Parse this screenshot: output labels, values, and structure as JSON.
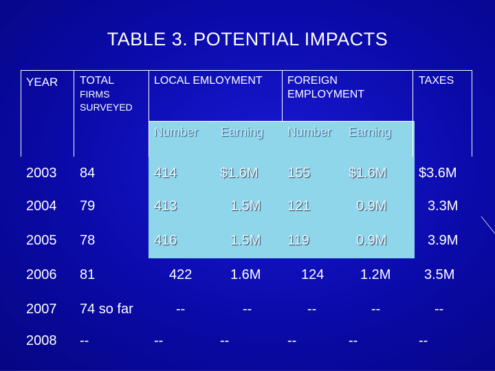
{
  "title": "TABLE 3. POTENTIAL IMPACTS",
  "headers": {
    "year": "YEAR",
    "total_line1": "TOTAL",
    "total_line2": "FIRMS",
    "total_line3": "SURVEYED",
    "local": "LOCAL EMLOYMENT",
    "foreign_line1": "FOREIGN",
    "foreign_line2": "EMPLOYMENT",
    "taxes": "TAXES"
  },
  "subheaders": {
    "local_number": "Number",
    "local_earning": "Earning",
    "foreign_number": "Number",
    "foreign_earning": "Earning"
  },
  "rows": [
    {
      "year": "2003",
      "total": "84",
      "local_number": "414",
      "local_earning": "$1.6M",
      "foreign_number": "155",
      "foreign_earning": "$1.6M",
      "taxes": "$3.6M"
    },
    {
      "year": "2004",
      "total": "79",
      "local_number": "413",
      "local_earning": "1.5M",
      "foreign_number": "121",
      "foreign_earning": "0.9M",
      "taxes": "3.3M"
    },
    {
      "year": "2005",
      "total": "78",
      "local_number": "416",
      "local_earning": "1.5M",
      "foreign_number": "119",
      "foreign_earning": "0.9M",
      "taxes": "3.9M"
    },
    {
      "year": "2006",
      "total": "81",
      "local_number": "422",
      "local_earning": "1.6M",
      "foreign_number": "124",
      "foreign_earning": "1.2M",
      "taxes": "3.5M"
    },
    {
      "year": "2007",
      "total": "74 so far",
      "local_number": "--",
      "local_earning": "--",
      "foreign_number": "--",
      "foreign_earning": "--",
      "taxes": "--"
    },
    {
      "year": "2008",
      "total": "--",
      "local_number": "--",
      "local_earning": "--",
      "foreign_number": "--",
      "foreign_earning": "--",
      "taxes": "--"
    }
  ],
  "colors": {
    "background": "#0a0aa8",
    "highlight": "#8fd6ea",
    "text": "#ffffff"
  }
}
